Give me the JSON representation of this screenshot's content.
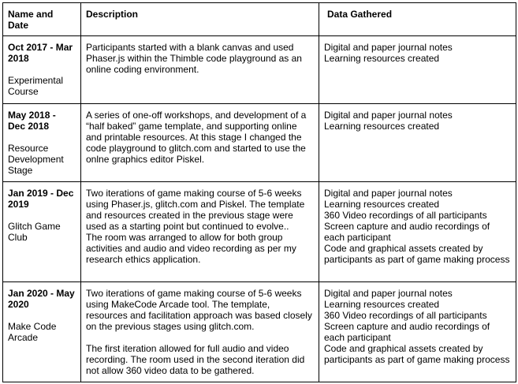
{
  "headers": [
    "Name and Date",
    "Description",
    "Data Gathered"
  ],
  "rows": [
    {
      "date": "Oct 2017 - Mar 2018",
      "stage": "Experimental Course",
      "description": "Participants started with a blank canvas and used Phaser.js within the Thimble code playground as an online coding environment.",
      "description2": "",
      "data": [
        "Digital and paper journal notes",
        "Learning resources created"
      ]
    },
    {
      "date": "May 2018 - Dec 2018",
      "stage": "Resource Development Stage",
      "description": "A series of one-off workshops, and development of a “half baked” game template, and supporting online and printable resources. At this stage I changed the code playground to glitch.com and started to use the onlne graphics editor Piskel.",
      "description2": "",
      "data": [
        "Digital and paper journal notes",
        "Learning resources created"
      ]
    },
    {
      "date": "Jan 2019 - Dec 2019",
      "stage": "Glitch Game Club",
      "description": "Two iterations of game making course of 5-6 weeks using Phaser.js, glitch.com and Piskel. The template and resources created in the previous stage were used as a starting point but continued to evolve..",
      "description2": "The room was arranged to allow for both group activities and  audio and video recording as per my research ethics application.",
      "data": [
        "Digital and paper journal notes",
        "Learning resources created",
        "360 Video recordings of all participants",
        "Screen capture and audio recordings of each participant",
        "Code and graphical assets created by participants as part of game making process"
      ]
    },
    {
      "date": "Jan 2020 - May 2020",
      "stage": "Make Code Arcade",
      "description": "Two iterations of game making course of 5-6 weeks using MakeCode Arcade tool. The template, resources and facilitation approach was based closely on the previous stages using glitch.com.",
      "description2": "The first iteration allowed for full audio and video recording. The room used in the second iteration did not allow 360 video data to be gathered.",
      "data": [
        "Digital and paper journal notes",
        "Learning resources created",
        "360 Video recordings of all participants",
        "Screen capture and audio recordings of each participant",
        "Code and graphical assets created by participants as part of game making process"
      ]
    }
  ]
}
